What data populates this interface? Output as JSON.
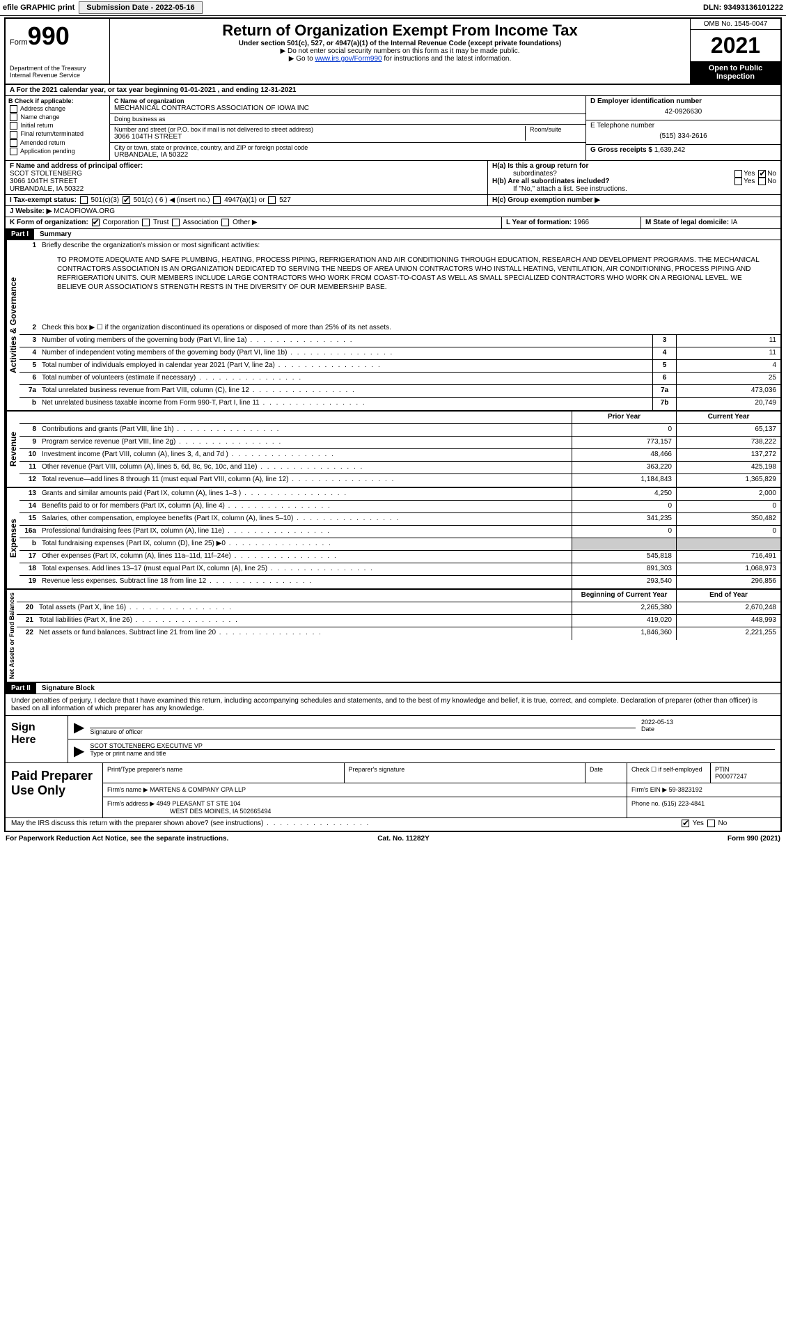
{
  "topbar": {
    "efile": "efile GRAPHIC print",
    "subdate_lbl": "Submission Date - 2022-05-16",
    "dln": "DLN: 93493136101222"
  },
  "header": {
    "form_word": "Form",
    "form_num": "990",
    "dept": "Department of the Treasury",
    "irs": "Internal Revenue Service",
    "title": "Return of Organization Exempt From Income Tax",
    "sub1": "Under section 501(c), 527, or 4947(a)(1) of the Internal Revenue Code (except private foundations)",
    "sub2": "▶ Do not enter social security numbers on this form as it may be made public.",
    "sub3a": "▶ Go to ",
    "sub3_link": "www.irs.gov/Form990",
    "sub3b": " for instructions and the latest information.",
    "omb": "OMB No. 1545-0047",
    "year": "2021",
    "open": "Open to Public Inspection"
  },
  "row_a": "A For the 2021 calendar year, or tax year beginning 01-01-2021   , and ending 12-31-2021",
  "section_b": {
    "hdr": "B Check if applicable:",
    "opts": [
      "Address change",
      "Name change",
      "Initial return",
      "Final return/terminated",
      "Amended return",
      "Application pending"
    ]
  },
  "section_c": {
    "c_lbl": "C Name of organization",
    "org": "MECHANICAL CONTRACTORS ASSOCIATION OF IOWA INC",
    "dba_lbl": "Doing business as",
    "dba": "",
    "addr_lbl": "Number and street (or P.O. box if mail is not delivered to street address)",
    "addr": "3066 104TH STREET",
    "room_lbl": "Room/suite",
    "city_lbl": "City or town, state or province, country, and ZIP or foreign postal code",
    "city": "URBANDALE, IA  50322"
  },
  "section_de": {
    "d_lbl": "D Employer identification number",
    "ein": "42-0926630",
    "e_lbl": "E Telephone number",
    "phone": "(515) 334-2616",
    "g_lbl": "G Gross receipts $",
    "gross": "1,639,242"
  },
  "section_f": {
    "lbl": "F  Name and address of principal officer:",
    "name": "SCOT STOLTENBERG",
    "addr1": "3066 104TH STREET",
    "addr2": "URBANDALE, IA  50322"
  },
  "section_h": {
    "ha_lbl": "H(a)  Is this a group return for",
    "ha_lbl2": "subordinates?",
    "hb_lbl": "H(b)  Are all subordinates included?",
    "hb_note": "If \"No,\" attach a list. See instructions.",
    "hc_lbl": "H(c)  Group exemption number ▶",
    "yes": "Yes",
    "no": "No"
  },
  "section_i": {
    "lbl": "I  Tax-exempt status:",
    "o1": "501(c)(3)",
    "o2": "501(c) ( 6 ) ◀ (insert no.)",
    "o3": "4947(a)(1) or",
    "o4": "527"
  },
  "section_j": {
    "lbl": "J  Website: ▶",
    "val": "MCAOFIOWA.ORG"
  },
  "section_k": {
    "lbl": "K Form of organization:",
    "o1": "Corporation",
    "o2": "Trust",
    "o3": "Association",
    "o4": "Other ▶"
  },
  "section_l": {
    "lbl": "L Year of formation:",
    "val": "1966"
  },
  "section_m": {
    "lbl": "M State of legal domicile:",
    "val": "IA"
  },
  "part1": {
    "hdr": "Part I",
    "title": "Summary",
    "l1_lbl": "Briefly describe the organization's mission or most significant activities:",
    "mission": "TO PROMOTE ADEQUATE AND SAFE PLUMBING, HEATING, PROCESS PIPING, REFRIGERATION AND AIR CONDITIONING THROUGH EDUCATION, RESEARCH AND DEVELOPMENT PROGRAMS. THE MECHANICAL CONTRACTORS ASSOCIATION IS AN ORGANIZATION DEDICATED TO SERVING THE NEEDS OF AREA UNION CONTRACTORS WHO INSTALL HEATING, VENTILATION, AIR CONDITIONING, PROCESS PIPING AND REFRIGERATION UNITS. OUR MEMBERS INCLUDE LARGE CONTRACTORS WHO WORK FROM COAST-TO-COAST AS WELL AS SMALL SPECIALIZED CONTRACTORS WHO WORK ON A REGIONAL LEVEL. WE BELIEVE OUR ASSOCIATION'S STRENGTH RESTS IN THE DIVERSITY OF OUR MEMBERSHIP BASE.",
    "l2": "Check this box ▶ ☐ if the organization discontinued its operations or disposed of more than 25% of its net assets.",
    "side_ag": "Activities & Governance",
    "side_rev": "Revenue",
    "side_exp": "Expenses",
    "side_na": "Net Assets or Fund Balances",
    "rows_ag": [
      {
        "n": "3",
        "t": "Number of voting members of the governing body (Part VI, line 1a)",
        "box": "3",
        "v": "11"
      },
      {
        "n": "4",
        "t": "Number of independent voting members of the governing body (Part VI, line 1b)",
        "box": "4",
        "v": "11"
      },
      {
        "n": "5",
        "t": "Total number of individuals employed in calendar year 2021 (Part V, line 2a)",
        "box": "5",
        "v": "4"
      },
      {
        "n": "6",
        "t": "Total number of volunteers (estimate if necessary)",
        "box": "6",
        "v": "25"
      },
      {
        "n": "7a",
        "t": "Total unrelated business revenue from Part VIII, column (C), line 12",
        "box": "7a",
        "v": "473,036"
      },
      {
        "n": "b",
        "t": "Net unrelated business taxable income from Form 990-T, Part I, line 11",
        "box": "7b",
        "v": "20,749"
      }
    ],
    "col_prior": "Prior Year",
    "col_curr": "Current Year",
    "rows_rev": [
      {
        "n": "8",
        "t": "Contributions and grants (Part VIII, line 1h)",
        "p": "0",
        "c": "65,137"
      },
      {
        "n": "9",
        "t": "Program service revenue (Part VIII, line 2g)",
        "p": "773,157",
        "c": "738,222"
      },
      {
        "n": "10",
        "t": "Investment income (Part VIII, column (A), lines 3, 4, and 7d )",
        "p": "48,466",
        "c": "137,272"
      },
      {
        "n": "11",
        "t": "Other revenue (Part VIII, column (A), lines 5, 6d, 8c, 9c, 10c, and 11e)",
        "p": "363,220",
        "c": "425,198"
      },
      {
        "n": "12",
        "t": "Total revenue—add lines 8 through 11 (must equal Part VIII, column (A), line 12)",
        "p": "1,184,843",
        "c": "1,365,829"
      }
    ],
    "rows_exp": [
      {
        "n": "13",
        "t": "Grants and similar amounts paid (Part IX, column (A), lines 1–3 )",
        "p": "4,250",
        "c": "2,000"
      },
      {
        "n": "14",
        "t": "Benefits paid to or for members (Part IX, column (A), line 4)",
        "p": "0",
        "c": "0"
      },
      {
        "n": "15",
        "t": "Salaries, other compensation, employee benefits (Part IX, column (A), lines 5–10)",
        "p": "341,235",
        "c": "350,482"
      },
      {
        "n": "16a",
        "t": "Professional fundraising fees (Part IX, column (A), line 11e)",
        "p": "0",
        "c": "0"
      },
      {
        "n": "b",
        "t": "Total fundraising expenses (Part IX, column (D), line 25) ▶0",
        "p": "",
        "c": "",
        "shade": true
      },
      {
        "n": "17",
        "t": "Other expenses (Part IX, column (A), lines 11a–11d, 11f–24e)",
        "p": "545,818",
        "c": "716,491"
      },
      {
        "n": "18",
        "t": "Total expenses. Add lines 13–17 (must equal Part IX, column (A), line 25)",
        "p": "891,303",
        "c": "1,068,973"
      },
      {
        "n": "19",
        "t": "Revenue less expenses. Subtract line 18 from line 12",
        "p": "293,540",
        "c": "296,856"
      }
    ],
    "col_beg": "Beginning of Current Year",
    "col_end": "End of Year",
    "rows_na": [
      {
        "n": "20",
        "t": "Total assets (Part X, line 16)",
        "p": "2,265,380",
        "c": "2,670,248"
      },
      {
        "n": "21",
        "t": "Total liabilities (Part X, line 26)",
        "p": "419,020",
        "c": "448,993"
      },
      {
        "n": "22",
        "t": "Net assets or fund balances. Subtract line 21 from line 20",
        "p": "1,846,360",
        "c": "2,221,255"
      }
    ]
  },
  "part2": {
    "hdr": "Part II",
    "title": "Signature Block",
    "decl": "Under penalties of perjury, I declare that I have examined this return, including accompanying schedules and statements, and to the best of my knowledge and belief, it is true, correct, and complete. Declaration of preparer (other than officer) is based on all information of which preparer has any knowledge.",
    "sign_here": "Sign Here",
    "sig_of": "Signature of officer",
    "sig_date_lbl": "Date",
    "sig_date": "2022-05-13",
    "sig_name": "SCOT STOLTENBERG  EXECUTIVE VP",
    "sig_type": "Type or print name and title",
    "paid": "Paid Preparer Use Only",
    "prep_name_lbl": "Print/Type preparer's name",
    "prep_sig_lbl": "Preparer's signature",
    "date_lbl": "Date",
    "check_lbl": "Check ☐ if self-employed",
    "ptin_lbl": "PTIN",
    "ptin": "P00077247",
    "firm_name_lbl": "Firm's name    ▶",
    "firm_name": "MARTENS & COMPANY CPA LLP",
    "firm_ein_lbl": "Firm's EIN ▶",
    "firm_ein": "59-3823192",
    "firm_addr_lbl": "Firm's address ▶",
    "firm_addr1": "4949 PLEASANT ST STE 104",
    "firm_addr2": "WEST DES MOINES, IA  502665494",
    "phone_lbl": "Phone no.",
    "phone": "(515) 223-4841",
    "discuss": "May the IRS discuss this return with the preparer shown above? (see instructions)",
    "yes": "Yes",
    "no": "No"
  },
  "footer": {
    "left": "For Paperwork Reduction Act Notice, see the separate instructions.",
    "mid": "Cat. No. 11282Y",
    "right": "Form 990 (2021)"
  }
}
